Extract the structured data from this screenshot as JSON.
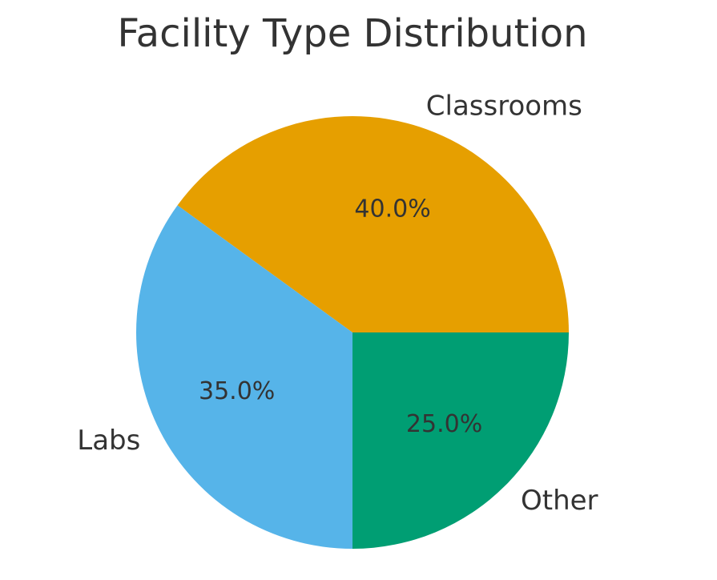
{
  "chart_data": {
    "type": "pie",
    "title": "Facility Type Distribution",
    "categories": [
      "Classrooms",
      "Labs",
      "Other"
    ],
    "values": [
      40.0,
      35.0,
      25.0
    ],
    "value_labels": [
      "40.0%",
      "35.0%",
      "25.0%"
    ],
    "colors": [
      "#E69F00",
      "#56B4E9",
      "#009E73"
    ],
    "start_angle_deg": 0,
    "direction": "counterclockwise",
    "legend": "none"
  }
}
